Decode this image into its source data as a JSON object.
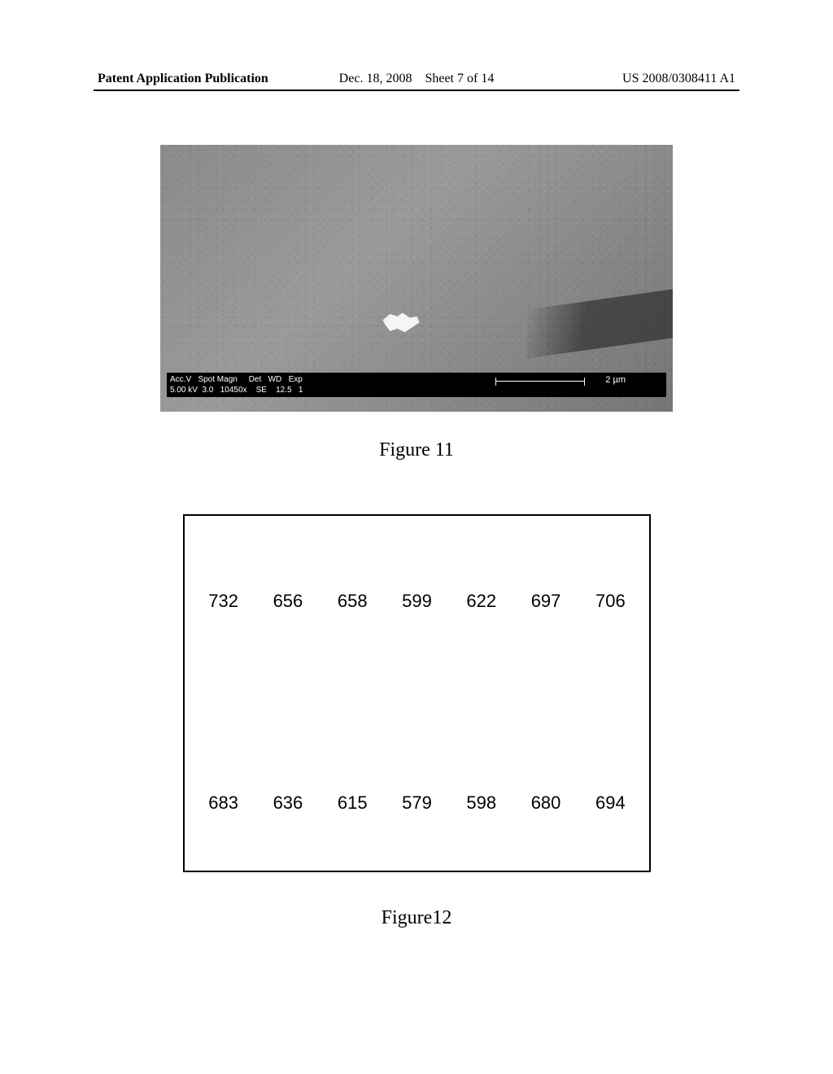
{
  "header": {
    "left": "Patent Application Publication",
    "date": "Dec. 18, 2008",
    "sheet": "Sheet 7 of 14",
    "pubnum": "US 2008/0308411 A1"
  },
  "sem": {
    "caption_line1": "Acc.V   Spot Magn     Det   WD   Exp",
    "caption_line2": "5.00 kV  3.0   10450x    SE    12.5   1",
    "scale_label": "2 µm"
  },
  "figure11": {
    "caption": "Figure 11"
  },
  "figure12": {
    "caption": "Figure12",
    "row1": [
      "732",
      "656",
      "658",
      "599",
      "622",
      "697",
      "706"
    ],
    "row2": [
      "683",
      "636",
      "615",
      "579",
      "598",
      "680",
      "694"
    ]
  },
  "colors": {
    "text": "#000000",
    "background": "#ffffff",
    "border": "#000000"
  }
}
